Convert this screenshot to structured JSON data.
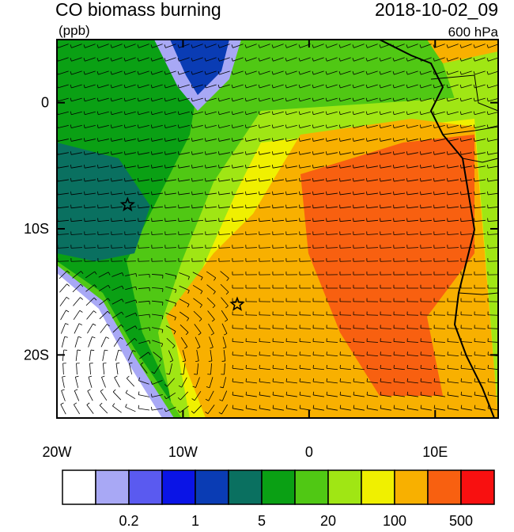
{
  "title": "CO biomass burning",
  "units": "(ppb)",
  "date": "2018-10-02_09",
  "level": "600 hPa",
  "map": {
    "xlim": [
      -20,
      15
    ],
    "ylim": [
      -25,
      5
    ],
    "xticks": [
      {
        "value": -20,
        "label": "20W"
      },
      {
        "value": -10,
        "label": "10W"
      },
      0,
      {
        "value": 10,
        "label": "10E"
      }
    ],
    "yticks": [
      0,
      {
        "value": -10,
        "label": "10S"
      },
      {
        "value": -20,
        "label": "20S"
      }
    ],
    "markers": [
      {
        "lon": -14.4,
        "lat": -8.1
      },
      {
        "lon": -5.7,
        "lat": -16.0
      }
    ]
  },
  "colorbar": {
    "colors": [
      "#ffffff",
      "#a8a8f5",
      "#5a5af0",
      "#0a14e6",
      "#0a3cb4",
      "#0a7060",
      "#0aa014",
      "#50c814",
      "#a0e614",
      "#f0f000",
      "#f8b000",
      "#f86010",
      "#f81010"
    ],
    "labels": [
      0.2,
      1,
      5,
      20,
      100,
      500
    ]
  }
}
